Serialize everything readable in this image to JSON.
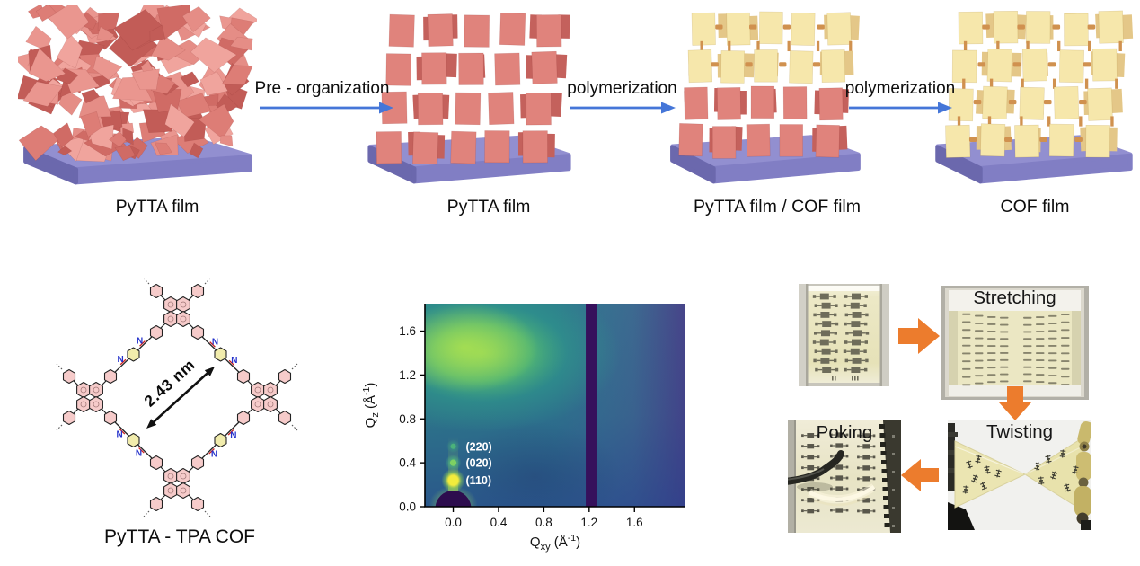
{
  "scheme": {
    "panels": [
      {
        "label": "PyTTA film",
        "style": "disordered-red"
      },
      {
        "label": "PyTTA film",
        "style": "ordered-red"
      },
      {
        "label": "PyTTA film / COF film",
        "style": "mixed"
      },
      {
        "label": "COF film",
        "style": "ordered-yellow"
      }
    ],
    "steps": [
      {
        "label": "Pre - organization"
      },
      {
        "label": "polymerization"
      },
      {
        "label": "polymerization"
      }
    ],
    "colors": {
      "red_tile": "#e0837c",
      "red_tile_dark": "#c4615c",
      "yellow_tile": "#f6e7ab",
      "yellow_tile_dark": "#e4c788",
      "linker": "#d0914f",
      "substrate_top": "#928fd0",
      "substrate_front": "#817ec4",
      "substrate_side": "#6b68ad",
      "arrow": "#4576d8"
    }
  },
  "structure": {
    "dimension_label": "2.43 nm",
    "caption": "PyTTA - TPA COF",
    "nitrogen_label": "N",
    "colors": {
      "ring_pink": "#f6cbca",
      "ring_yellow": "#f1ecac",
      "bond": "#222222",
      "nitrogen": "#2633cb",
      "imine": "#cb2020"
    }
  },
  "chart_data": {
    "type": "heatmap",
    "xlabel_parts": {
      "base": "Q",
      "sub": "xy",
      "unit": " (Å",
      "exp": "-1",
      "close": ")"
    },
    "ylabel_parts": {
      "base": "Q",
      "sub": "z",
      "unit": " (Å",
      "exp": "-1",
      "close": ")"
    },
    "xlim": [
      -0.25,
      2.05
    ],
    "ylim": [
      0,
      1.85
    ],
    "xticks": [
      "0.0",
      "0.4",
      "0.8",
      "1.2",
      "1.6"
    ],
    "yticks": [
      "0.0",
      "0.4",
      "0.8",
      "1.2",
      "1.6"
    ],
    "colormap": "viridis",
    "peaks": [
      {
        "label": "(220)",
        "qxy": 0.0,
        "qz": 0.55,
        "intensity": "weak"
      },
      {
        "label": "(020)",
        "qxy": 0.0,
        "qz": 0.4,
        "intensity": "medium"
      },
      {
        "label": "(110)",
        "qxy": 0.0,
        "qz": 0.24,
        "intensity": "strong"
      }
    ],
    "features": {
      "diffuse_scattering_center": {
        "qxy": 0.25,
        "qz": 1.4
      },
      "detector_gap_qxy": [
        1.17,
        1.27
      ],
      "beamstop_at_origin": true
    }
  },
  "flex_tests": {
    "photos": [
      {
        "label": ""
      },
      {
        "label": "Stretching"
      },
      {
        "label": "Twisting"
      },
      {
        "label": "Poking"
      }
    ],
    "arrow_color": "#ec7c2d"
  }
}
